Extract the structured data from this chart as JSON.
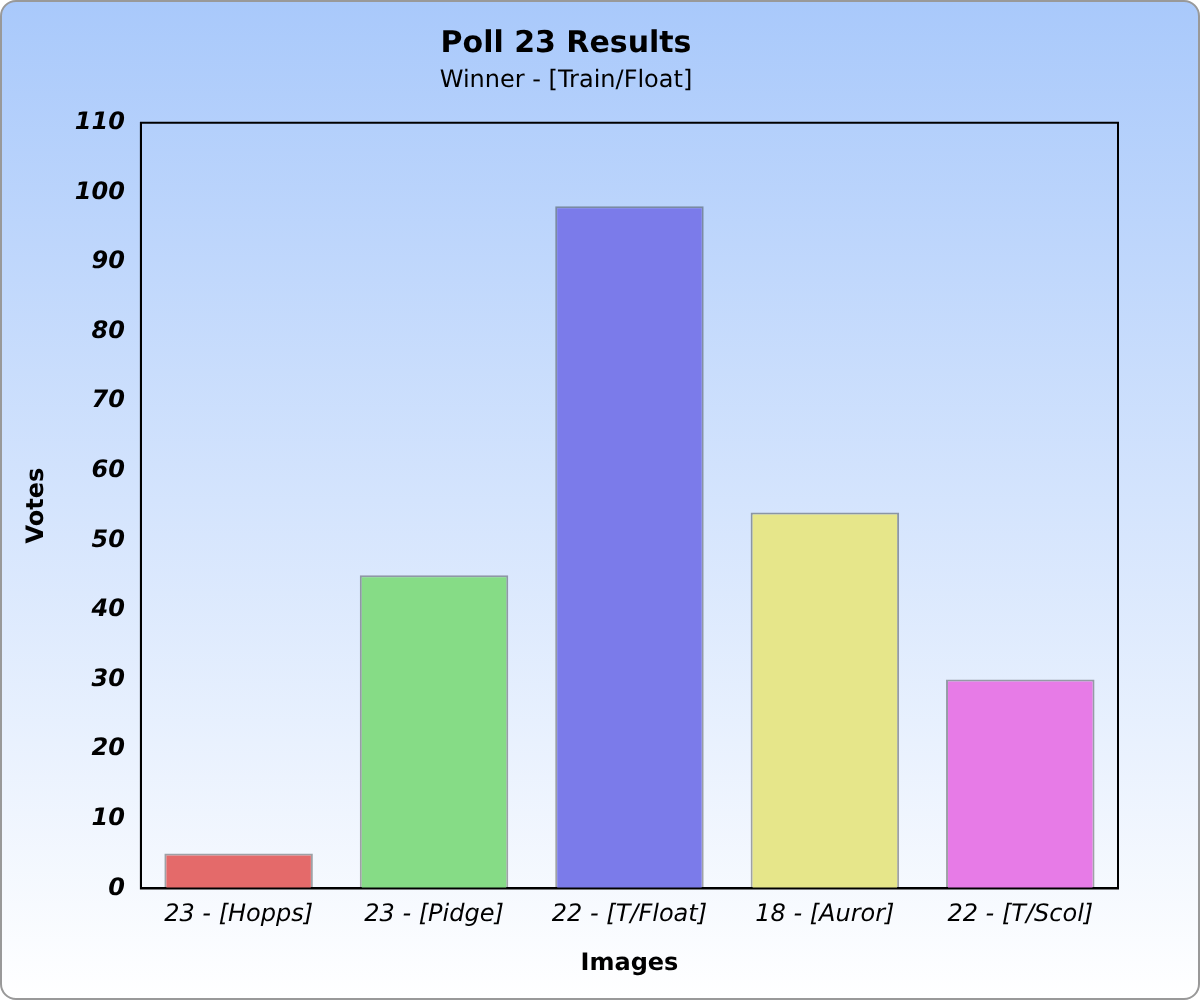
{
  "chart_data": {
    "type": "bar",
    "title": "Poll 23 Results",
    "subtitle": "Winner - [Train/Float]",
    "xlabel": "Images",
    "ylabel": "Votes",
    "categories": [
      "23 - [Hopps]",
      "23 - [Pidge]",
      "22 - [T/Float]",
      "18 - [Auror]",
      "22 - [T/Scol]"
    ],
    "values": [
      5,
      45,
      98,
      54,
      30
    ],
    "colors": [
      "#e46a6a",
      "#86dc86",
      "#7b7bea",
      "#e6e68a",
      "#e77be7"
    ],
    "ylim": [
      0,
      110
    ],
    "yticks": [
      0,
      10,
      20,
      30,
      40,
      50,
      60,
      70,
      80,
      90,
      100,
      110
    ],
    "grid": false,
    "legend": false
  }
}
